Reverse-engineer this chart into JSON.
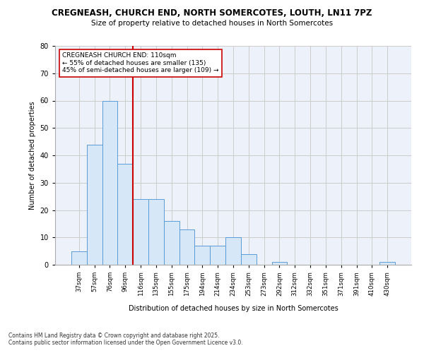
{
  "title1": "CREGNEASH, CHURCH END, NORTH SOMERCOTES, LOUTH, LN11 7PZ",
  "title2": "Size of property relative to detached houses in North Somercotes",
  "xlabel": "Distribution of detached houses by size in North Somercotes",
  "ylabel": "Number of detached properties",
  "bar_labels": [
    "37sqm",
    "57sqm",
    "76sqm",
    "96sqm",
    "116sqm",
    "135sqm",
    "155sqm",
    "175sqm",
    "194sqm",
    "214sqm",
    "234sqm",
    "253sqm",
    "273sqm",
    "292sqm",
    "312sqm",
    "332sqm",
    "351sqm",
    "371sqm",
    "391sqm",
    "410sqm",
    "430sqm"
  ],
  "bar_values": [
    5,
    44,
    60,
    37,
    24,
    24,
    16,
    13,
    7,
    7,
    10,
    4,
    0,
    1,
    0,
    0,
    0,
    0,
    0,
    0,
    1
  ],
  "bar_color": "#d6e8f7",
  "bar_edgecolor": "#5b9bd5",
  "vline_x": 3.5,
  "vline_color": "#cc0000",
  "annotation_text": "CREGNEASH CHURCH END: 110sqm\n← 55% of detached houses are smaller (135)\n45% of semi-detached houses are larger (109) →",
  "annotation_box_color": "#ffffff",
  "annotation_box_edgecolor": "#cc0000",
  "ylim": [
    0,
    80
  ],
  "yticks": [
    0,
    10,
    20,
    30,
    40,
    50,
    60,
    70,
    80
  ],
  "grid_color": "#cccccc",
  "background_color": "#edf2fa",
  "footer": "Contains HM Land Registry data © Crown copyright and database right 2025.\nContains public sector information licensed under the Open Government Licence v3.0."
}
